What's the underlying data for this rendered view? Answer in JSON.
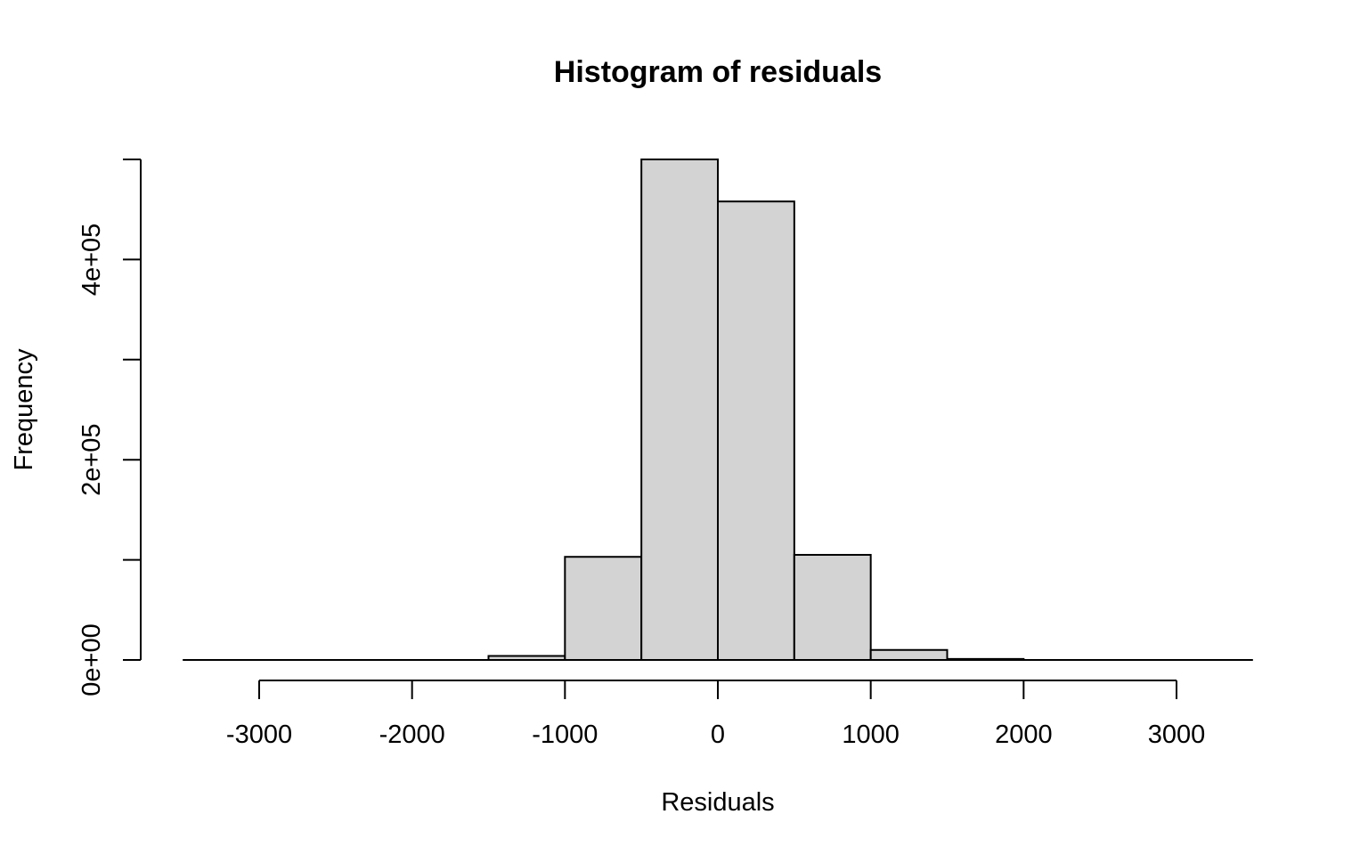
{
  "chart_data": {
    "type": "bar",
    "title": "Histogram of residuals",
    "xlabel": "Residuals",
    "ylabel": "Frequency",
    "bins": [
      {
        "from": -3500,
        "to": -3000,
        "value": 0
      },
      {
        "from": -3000,
        "to": -2500,
        "value": 0
      },
      {
        "from": -2500,
        "to": -2000,
        "value": 0
      },
      {
        "from": -2000,
        "to": -1500,
        "value": 0
      },
      {
        "from": -1500,
        "to": -1000,
        "value": 4000
      },
      {
        "from": -1000,
        "to": -500,
        "value": 103000
      },
      {
        "from": -500,
        "to": 0,
        "value": 500000
      },
      {
        "from": 0,
        "to": 500,
        "value": 458000
      },
      {
        "from": 500,
        "to": 1000,
        "value": 105000
      },
      {
        "from": 1000,
        "to": 1500,
        "value": 10000
      },
      {
        "from": 1500,
        "to": 2000,
        "value": 1000
      },
      {
        "from": 2000,
        "to": 2500,
        "value": 0
      },
      {
        "from": 2500,
        "to": 3000,
        "value": 0
      },
      {
        "from": 3000,
        "to": 3500,
        "value": 0
      }
    ],
    "xlim": [
      -3500,
      3500
    ],
    "ylim": [
      0,
      500000
    ],
    "x_ticks": [
      -3000,
      -2000,
      -1000,
      0,
      1000,
      2000,
      3000
    ],
    "x_tick_labels": [
      "-3000",
      "-2000",
      "-1000",
      "0",
      "1000",
      "2000",
      "3000"
    ],
    "y_ticks": [
      0,
      100000,
      200000,
      300000,
      400000,
      500000
    ],
    "y_tick_labels": [
      "0e+00",
      "",
      "2e+05",
      "",
      "4e+05",
      ""
    ],
    "bar_fill": "#d3d3d3",
    "bar_stroke": "#000000",
    "grid": false
  }
}
